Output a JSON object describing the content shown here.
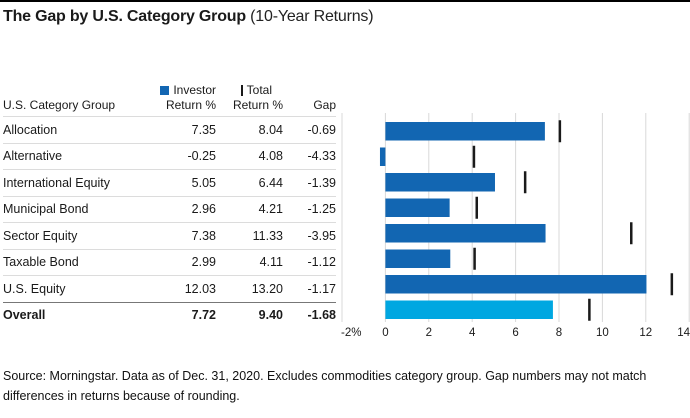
{
  "title": {
    "main": "The Gap by U.S. Category Group",
    "suffix": " (10-Year Returns)"
  },
  "table": {
    "group_header": "U.S. Category Group",
    "investor_legend": "Investor",
    "investor_sub": "Return %",
    "total_legend": "Total",
    "total_sub": "Return %",
    "gap_header": "Gap",
    "rows": [
      {
        "label": "Allocation",
        "investor": "7.35",
        "total": "8.04",
        "gap": "-0.69"
      },
      {
        "label": "Alternative",
        "investor": "-0.25",
        "total": "4.08",
        "gap": "-4.33"
      },
      {
        "label": "International Equity",
        "investor": "5.05",
        "total": "6.44",
        "gap": "-1.39"
      },
      {
        "label": "Municipal Bond",
        "investor": "2.96",
        "total": "4.21",
        "gap": "-1.25"
      },
      {
        "label": "Sector Equity",
        "investor": "7.38",
        "total": "11.33",
        "gap": "-3.95"
      },
      {
        "label": "Taxable Bond",
        "investor": "2.99",
        "total": "4.11",
        "gap": "-1.12"
      },
      {
        "label": "U.S. Equity",
        "investor": "12.03",
        "total": "13.20",
        "gap": "-1.17"
      }
    ],
    "overall": {
      "label": "Overall",
      "investor": "7.72",
      "total": "9.40",
      "gap": "-1.68"
    }
  },
  "chart_data": {
    "type": "bar",
    "orientation": "horizontal",
    "title": "The Gap by U.S. Category Group (10-Year Returns)",
    "categories": [
      "Allocation",
      "Alternative",
      "International Equity",
      "Municipal Bond",
      "Sector Equity",
      "Taxable Bond",
      "U.S. Equity",
      "Overall"
    ],
    "series": [
      {
        "name": "Investor Return %",
        "values": [
          7.35,
          -0.25,
          5.05,
          2.96,
          7.38,
          2.99,
          12.03,
          7.72
        ]
      },
      {
        "name": "Total Return %",
        "values": [
          8.04,
          4.08,
          6.44,
          4.21,
          11.33,
          4.11,
          13.2,
          9.4
        ]
      }
    ],
    "xlim": [
      -2,
      14
    ],
    "xticks": [
      -2,
      0,
      2,
      4,
      6,
      8,
      10,
      12,
      14
    ],
    "xticklabels": [
      "-2%",
      "0",
      "2",
      "4",
      "6",
      "8",
      "10",
      "12",
      "14"
    ],
    "grid": true,
    "legend_position": "top-left-of-table",
    "overall_index": 7,
    "bar_color": "#1266b2",
    "overall_bar_color": "#00a7e1",
    "marker_color": "#1a1a1a",
    "grid_color": "#d8d8d8",
    "axis_text_color": "#1a1a1a"
  },
  "footer": {
    "text": "Source: Morningstar. Data as of Dec. 31, 2020. Excludes commodities category group. Gap numbers may not match differences in returns because of rounding."
  }
}
